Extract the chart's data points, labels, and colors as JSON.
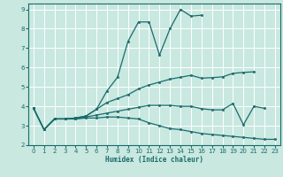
{
  "xlabel": "Humidex (Indice chaleur)",
  "xlim": [
    -0.5,
    23.5
  ],
  "ylim": [
    2,
    9.3
  ],
  "xticks": [
    0,
    1,
    2,
    3,
    4,
    5,
    6,
    7,
    8,
    9,
    10,
    11,
    12,
    13,
    14,
    15,
    16,
    17,
    18,
    19,
    20,
    21,
    22,
    23
  ],
  "yticks": [
    2,
    3,
    4,
    5,
    6,
    7,
    8,
    9
  ],
  "background_color": "#c8e8e0",
  "grid_color": "#ffffff",
  "line_color": "#1a6b6b",
  "line1_x": [
    0,
    1,
    2,
    3,
    4,
    5,
    6,
    7,
    8,
    9,
    10,
    11,
    12,
    13,
    14,
    15,
    16
  ],
  "line1_y": [
    3.9,
    2.8,
    3.35,
    3.35,
    3.4,
    3.5,
    3.85,
    4.8,
    5.5,
    7.35,
    8.35,
    8.35,
    6.65,
    8.0,
    9.0,
    8.65,
    8.7
  ],
  "line2_x": [
    0,
    1,
    2,
    3,
    4,
    5,
    6,
    7,
    8,
    9,
    10,
    11,
    12,
    13,
    14,
    15,
    16,
    17,
    18,
    19,
    20,
    21
  ],
  "line2_y": [
    3.9,
    2.8,
    3.35,
    3.35,
    3.4,
    3.5,
    3.85,
    4.2,
    4.4,
    4.6,
    4.9,
    5.1,
    5.25,
    5.4,
    5.5,
    5.6,
    5.45,
    5.48,
    5.52,
    5.7,
    5.75,
    5.78
  ],
  "line3_x": [
    0,
    1,
    2,
    3,
    4,
    5,
    6,
    7,
    8,
    9,
    10,
    11,
    12,
    13,
    14,
    15,
    16,
    17,
    18,
    19,
    20,
    21,
    22
  ],
  "line3_y": [
    3.9,
    2.8,
    3.35,
    3.35,
    3.35,
    3.45,
    3.55,
    3.65,
    3.75,
    3.85,
    3.95,
    4.05,
    4.05,
    4.05,
    4.0,
    4.0,
    3.88,
    3.82,
    3.82,
    4.15,
    3.05,
    4.0,
    3.9
  ],
  "line4_x": [
    0,
    1,
    2,
    3,
    4,
    5,
    6,
    7,
    8,
    9,
    10,
    11,
    12,
    13,
    14,
    15,
    16,
    17,
    18,
    19,
    20,
    21,
    22,
    23
  ],
  "line4_y": [
    3.9,
    2.8,
    3.35,
    3.35,
    3.35,
    3.4,
    3.4,
    3.45,
    3.45,
    3.4,
    3.35,
    3.15,
    3.0,
    2.85,
    2.8,
    2.7,
    2.6,
    2.55,
    2.5,
    2.45,
    2.4,
    2.35,
    2.3,
    2.3
  ]
}
